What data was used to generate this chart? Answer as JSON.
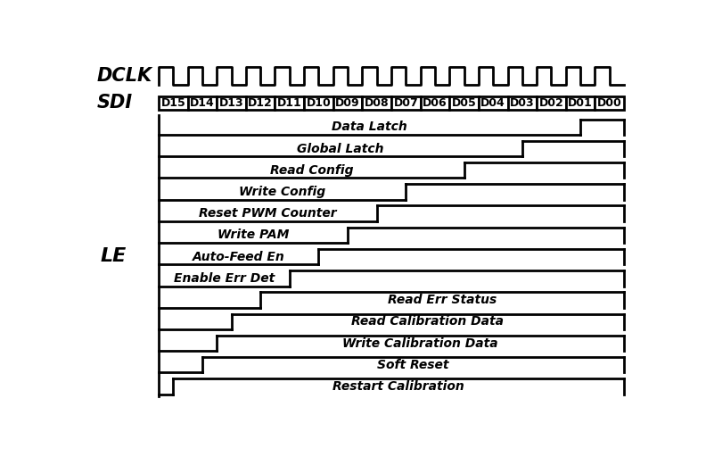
{
  "background_color": "#ffffff",
  "dclk_label": "DCLK",
  "sdi_label": "SDI",
  "le_label": "LE",
  "sdi_bits": [
    "D15",
    "D14",
    "D13",
    "D12",
    "D11",
    "D10",
    "D09",
    "D08",
    "D07",
    "D06",
    "D05",
    "D04",
    "D03",
    "D02",
    "D01",
    "D00"
  ],
  "le_signals": [
    {
      "name": "Data Latch",
      "rise_bit": 1,
      "label_left": true
    },
    {
      "name": "Global Latch",
      "rise_bit": 3,
      "label_left": true
    },
    {
      "name": "Read Config",
      "rise_bit": 5,
      "label_left": true
    },
    {
      "name": "Write Config",
      "rise_bit": 7,
      "label_left": true
    },
    {
      "name": "Reset PWM Counter",
      "rise_bit": 8,
      "label_left": true
    },
    {
      "name": "Write PAM",
      "rise_bit": 9,
      "label_left": true
    },
    {
      "name": "Auto-Feed En",
      "rise_bit": 10,
      "label_left": true
    },
    {
      "name": "Enable Err Det",
      "rise_bit": 11,
      "label_left": true
    },
    {
      "name": "Read Err Status",
      "rise_bit": 12,
      "label_left": false
    },
    {
      "name": "Read Calibration Data",
      "rise_bit": 13,
      "label_left": false
    },
    {
      "name": "Write Calibration Data",
      "rise_bit": 14,
      "label_left": false
    },
    {
      "name": "Soft Reset",
      "rise_bit": 14,
      "label_left": false
    },
    {
      "name": "Restart Calibration",
      "rise_bit": 15,
      "label_left": false
    }
  ],
  "n_clk": 16,
  "n_bits": 16,
  "text_color": "#000000",
  "line_color": "#000000",
  "line_width": 2.0,
  "font_size_dclk": 15,
  "font_size_sdi": 15,
  "font_size_le": 16,
  "font_size_bit": 9,
  "font_size_signal": 10
}
